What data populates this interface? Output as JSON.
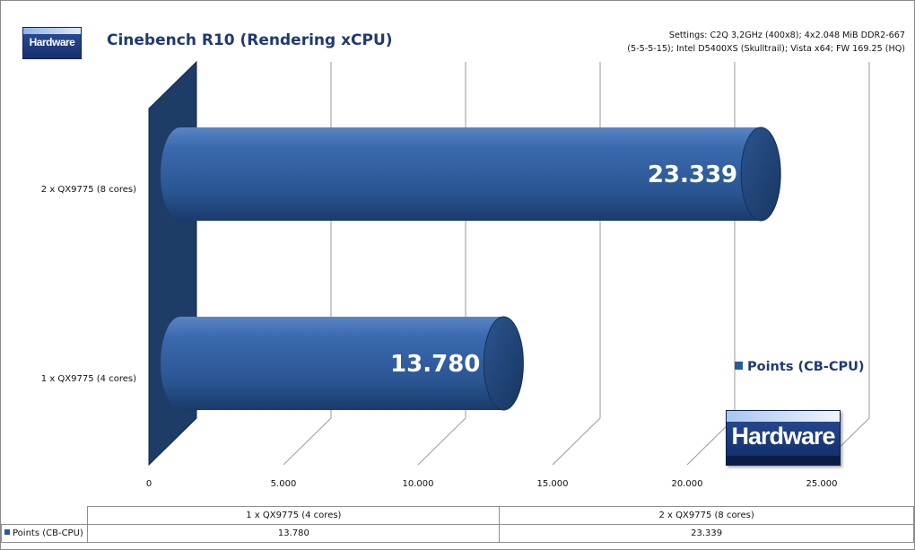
{
  "chart_data": {
    "type": "bar",
    "orientation": "horizontal",
    "title": "Cinebench R10 (Rendering xCPU)",
    "categories": [
      "1 x QX9775  (4 cores)",
      "2 x QX9775  (8 cores)"
    ],
    "series": [
      {
        "name": "Points (CB-CPU)",
        "values": [
          13780,
          23339
        ],
        "color": "#2b5a9b"
      }
    ],
    "data_labels": [
      "13.780",
      "23.339"
    ],
    "x_ticks": [
      0,
      5000,
      10000,
      15000,
      20000,
      25000
    ],
    "x_tick_labels": [
      "0",
      "5.000",
      "10.000",
      "15.000",
      "20.000",
      "25.000"
    ],
    "xlim": [
      0,
      25000
    ],
    "grid": true,
    "legend": "right",
    "style": "3d-cylinder"
  },
  "header": {
    "logo_text": "Hardware",
    "settings_line1": "Settings: C2Q 3,2GHz (400x8); 4x2.048 MiB DDR2-667",
    "settings_line2": "(5-5-5-15); Intel D5400XS (Skulltrail);  Vista x64; FW 169.25 (HQ)"
  },
  "legend": {
    "label": "Points (CB-CPU)"
  },
  "watermark": {
    "text": "Hardware"
  },
  "table": {
    "columns": [
      "1 x QX9775 (4 cores)",
      "2 x QX9775 (8 cores)"
    ],
    "row_label": "Points (CB-CPU)",
    "values": [
      "13.780",
      "23.339"
    ]
  },
  "colors": {
    "bar": "#2b5a9b",
    "wall": "#1e3d66",
    "title": "#1f3a70"
  }
}
